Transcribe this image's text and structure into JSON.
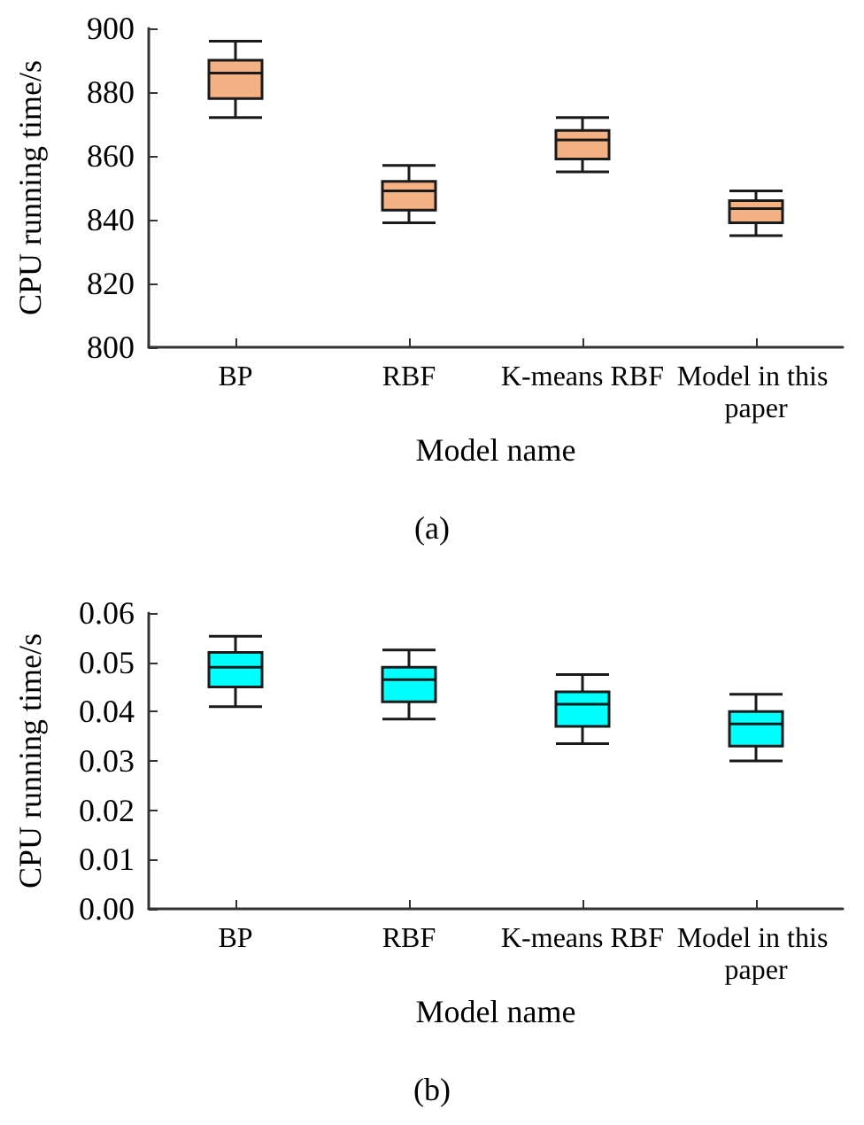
{
  "chart_data": [
    {
      "type": "box",
      "xlabel": "Model name",
      "ylabel": "CPU running time/s",
      "categories": [
        "BP",
        "RBF",
        "K-means RBF",
        "Model in this paper"
      ],
      "color": "#f4b183",
      "ylim": [
        800,
        900
      ],
      "yticks": [
        800,
        820,
        840,
        860,
        880,
        900
      ],
      "grid": false,
      "annotations": [
        "(a)"
      ],
      "boxes": [
        {
          "low": 872,
          "q1": 878,
          "median": 886,
          "q3": 890,
          "high": 896
        },
        {
          "low": 839,
          "q1": 843,
          "median": 849,
          "q3": 852,
          "high": 857
        },
        {
          "low": 855,
          "q1": 859,
          "median": 865,
          "q3": 868,
          "high": 872
        },
        {
          "low": 835,
          "q1": 839,
          "median": 843.5,
          "q3": 846,
          "high": 849
        }
      ]
    },
    {
      "type": "box",
      "xlabel": "Model name",
      "ylabel": "CPU running time/s",
      "categories": [
        "BP",
        "RBF",
        "K-means RBF",
        "Model in this paper"
      ],
      "color": "#00ffff",
      "ylim": [
        0,
        0.06
      ],
      "yticks": [
        {
          "value": 0,
          "label": "0.00"
        },
        {
          "value": 0.01,
          "label": "0.01"
        },
        {
          "value": 0.02,
          "label": "0.02"
        },
        {
          "value": 0.03,
          "label": "0.03"
        },
        {
          "value": 0.04,
          "label": "0.04"
        },
        {
          "value": 0.05,
          "label": "0.05"
        },
        {
          "value": 0.06,
          "label": "0.06"
        }
      ],
      "grid": false,
      "annotations": [
        "(b)"
      ],
      "boxes": [
        {
          "low": 0.041,
          "q1": 0.045,
          "median": 0.049,
          "q3": 0.052,
          "high": 0.0553
        },
        {
          "low": 0.0385,
          "q1": 0.042,
          "median": 0.0465,
          "q3": 0.049,
          "high": 0.0525
        },
        {
          "low": 0.0335,
          "q1": 0.037,
          "median": 0.0415,
          "q3": 0.044,
          "high": 0.0475
        },
        {
          "low": 0.03,
          "q1": 0.033,
          "median": 0.0375,
          "q3": 0.04,
          "high": 0.0435
        }
      ]
    }
  ]
}
